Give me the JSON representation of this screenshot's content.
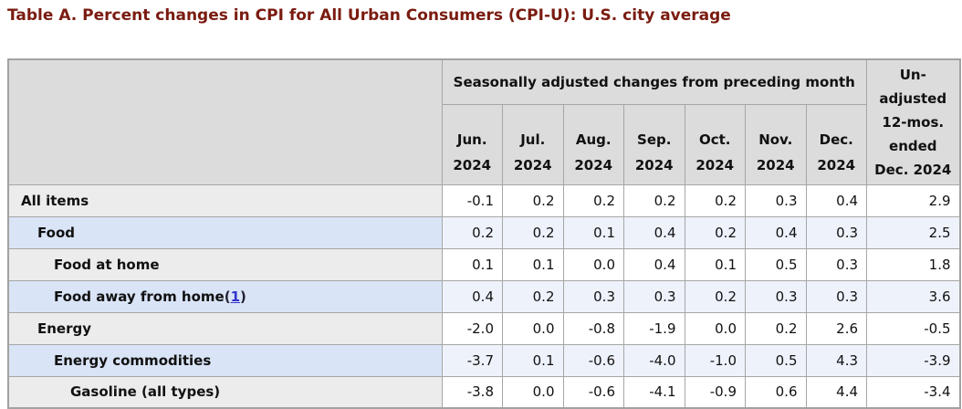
{
  "title": "Table A. Percent changes in CPI for All Urban Consumers (CPI-U): U.S. city average",
  "colors": {
    "title_text": "#7a1b10",
    "header_bg": "#dcdcdc",
    "row_gray_label_bg": "#ececec",
    "row_gray_data_bg": "#ffffff",
    "row_blue_label_bg": "#d9e4f7",
    "row_blue_data_bg": "#eef2fb",
    "border": "#a6a6a6",
    "footnote_link": "#3333cc"
  },
  "table": {
    "group_header": "Seasonally adjusted changes from preceding month",
    "unadjusted_header_lines": [
      "Un-",
      "adjusted",
      "12-mos.",
      "ended",
      "Dec. 2024"
    ],
    "columns": [
      {
        "month": "Jun.",
        "year": "2024"
      },
      {
        "month": "Jul.",
        "year": "2024"
      },
      {
        "month": "Aug.",
        "year": "2024"
      },
      {
        "month": "Sep.",
        "year": "2024"
      },
      {
        "month": "Oct.",
        "year": "2024"
      },
      {
        "month": "Nov.",
        "year": "2024"
      },
      {
        "month": "Dec.",
        "year": "2024"
      }
    ],
    "rows": [
      {
        "label": "All items",
        "indent": 0,
        "footnote": null,
        "values": [
          "-0.1",
          "0.2",
          "0.2",
          "0.2",
          "0.2",
          "0.3",
          "0.4"
        ],
        "unadjusted": "2.9"
      },
      {
        "label": "Food",
        "indent": 1,
        "footnote": null,
        "values": [
          "0.2",
          "0.2",
          "0.1",
          "0.4",
          "0.2",
          "0.4",
          "0.3"
        ],
        "unadjusted": "2.5"
      },
      {
        "label": "Food at home",
        "indent": 2,
        "footnote": null,
        "values": [
          "0.1",
          "0.1",
          "0.0",
          "0.4",
          "0.1",
          "0.5",
          "0.3"
        ],
        "unadjusted": "1.8"
      },
      {
        "label": "Food away from home",
        "indent": 2,
        "footnote": "1",
        "values": [
          "0.4",
          "0.2",
          "0.3",
          "0.3",
          "0.2",
          "0.3",
          "0.3"
        ],
        "unadjusted": "3.6"
      },
      {
        "label": "Energy",
        "indent": 1,
        "footnote": null,
        "values": [
          "-2.0",
          "0.0",
          "-0.8",
          "-1.9",
          "0.0",
          "0.2",
          "2.6"
        ],
        "unadjusted": "-0.5"
      },
      {
        "label": "Energy commodities",
        "indent": 2,
        "footnote": null,
        "values": [
          "-3.7",
          "0.1",
          "-0.6",
          "-4.0",
          "-1.0",
          "0.5",
          "4.3"
        ],
        "unadjusted": "-3.9"
      },
      {
        "label": "Gasoline (all types)",
        "indent": 3,
        "footnote": null,
        "values": [
          "-3.8",
          "0.0",
          "-0.6",
          "-4.1",
          "-0.9",
          "0.6",
          "4.4"
        ],
        "unadjusted": "-3.4"
      }
    ]
  }
}
